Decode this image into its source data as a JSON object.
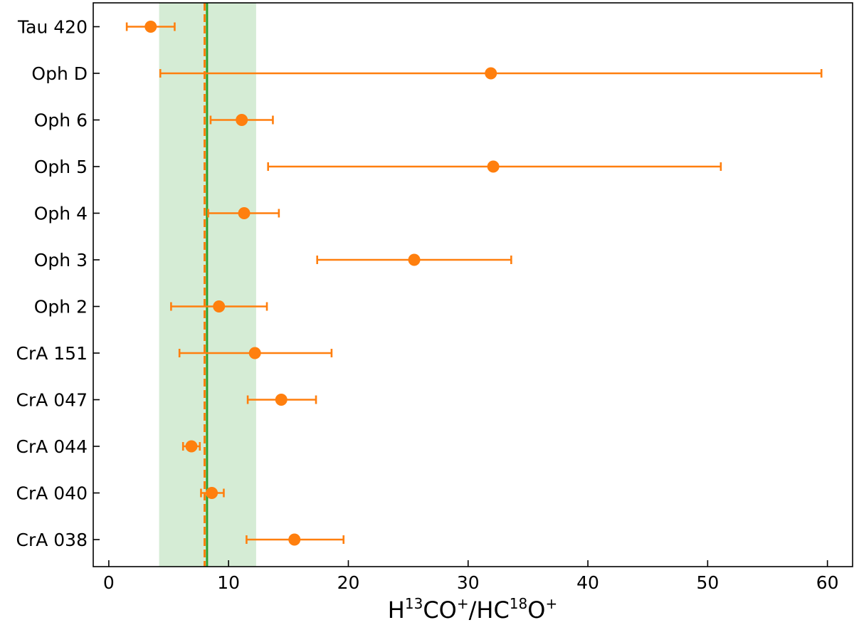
{
  "chart_data": {
    "type": "scatter",
    "orientation": "horizontal",
    "title": "",
    "xlabel": {
      "base1": "H",
      "sup1": "13",
      "mid": "CO",
      "sup2": "+",
      "slash": "/HC",
      "sup3": "18",
      "end": "O",
      "sup4": "+"
    },
    "ylabel": "",
    "xlim": [
      -1.3,
      62.1
    ],
    "xticks": [
      0,
      10,
      20,
      30,
      40,
      50,
      60
    ],
    "xtick_labels": [
      "0",
      "10",
      "20",
      "30",
      "40",
      "50",
      "60"
    ],
    "grid": false,
    "categories": [
      "Tau 420",
      "Oph D",
      "Oph 6",
      "Oph 5",
      "Oph 4",
      "Oph 3",
      "Oph 2",
      "CrA 151",
      "CrA 047",
      "CrA 044",
      "CrA 040",
      "CrA 038"
    ],
    "series": [
      {
        "values": [
          3.5,
          31.9,
          11.1,
          32.1,
          11.3,
          25.5,
          9.2,
          12.2,
          14.4,
          6.9,
          8.6,
          15.5
        ],
        "lower": [
          1.5,
          4.3,
          8.5,
          13.3,
          8.3,
          17.4,
          5.2,
          5.9,
          11.6,
          6.2,
          7.7,
          11.5
        ],
        "upper": [
          5.5,
          59.5,
          13.7,
          51.1,
          14.2,
          33.6,
          13.2,
          18.6,
          17.3,
          7.6,
          9.6,
          19.6
        ],
        "color": "#ff7f0e"
      }
    ],
    "reference_lines": [
      {
        "value": 8.2,
        "style": "solid",
        "color": "#2ca02c"
      },
      {
        "value": 8.0,
        "style": "dashed",
        "color": "#ff7f0e"
      }
    ],
    "reference_band": {
      "range": [
        4.2,
        12.3
      ],
      "color": "#2ca02c",
      "opacity": 0.2
    }
  }
}
